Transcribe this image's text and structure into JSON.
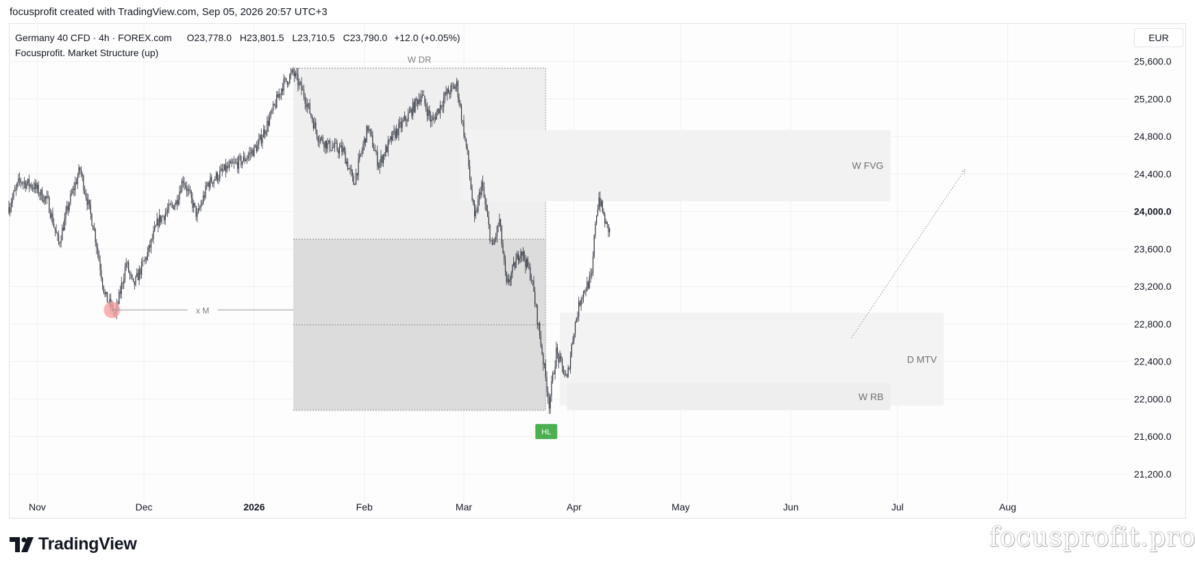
{
  "header": {
    "attribution": "focusprofit created with TradingView.com, Sep 05, 2026 20:57 UTC+3"
  },
  "legend": {
    "symbol": "Germany 40 CFD · 4h · FOREX.com",
    "open": "O23,778.0",
    "high": "H23,801.5",
    "low": "L23,710.5",
    "close": "C23,790.0",
    "change": "+12.0 (+0.05%)",
    "indicator": "Focusprofit. Market Structure (up)"
  },
  "currency": "EUR",
  "footer": {
    "logo_text": "TradingView",
    "watermark": "focusprofit.pro"
  },
  "colors": {
    "candle": "#2a2e39",
    "hl_badge": "#4caf50",
    "low_marker": "#f7a1a1",
    "zone": "#ececec",
    "zone_dark": "#dcdcdc"
  },
  "chart_data": {
    "type": "candlestick",
    "timeframe": "4h",
    "currency": "EUR",
    "y_ticks": [
      21200,
      21600,
      22000,
      22400,
      22800,
      23200,
      23600,
      24000,
      24400,
      24800,
      25200,
      25600
    ],
    "y_tick_labels": [
      "21,200.0",
      "21,600.0",
      "22,000.0",
      "22,400.0",
      "22,800.0",
      "23,200.0",
      "23,600.0",
      "24,000.0",
      "24,400.0",
      "24,800.0",
      "25,200.0",
      "25,600.0"
    ],
    "ylim": [
      20900,
      26000
    ],
    "x_ticks": [
      "Nov",
      "Dec",
      "2026",
      "Feb",
      "Mar",
      "Apr",
      "May",
      "Jun",
      "Jul",
      "Aug"
    ],
    "xlim": [
      "2025-10-24",
      "2026-09-04"
    ],
    "grid": true,
    "close_price": 23790.0,
    "price_path": [
      [
        "2025-10-24",
        24050
      ],
      [
        "2025-10-27",
        24330
      ],
      [
        "2025-10-31",
        24270
      ],
      [
        "2025-11-04",
        24100
      ],
      [
        "2025-11-07",
        23650
      ],
      [
        "2025-11-10",
        24100
      ],
      [
        "2025-11-13",
        24450
      ],
      [
        "2025-11-17",
        23800
      ],
      [
        "2025-11-20",
        23100
      ],
      [
        "2025-11-23",
        22900
      ],
      [
        "2025-11-26",
        23450
      ],
      [
        "2025-11-28",
        23200
      ],
      [
        "2025-12-02",
        23550
      ],
      [
        "2025-12-05",
        23900
      ],
      [
        "2025-12-10",
        24100
      ],
      [
        "2025-12-12",
        24350
      ],
      [
        "2025-12-16",
        23950
      ],
      [
        "2025-12-19",
        24300
      ],
      [
        "2025-12-24",
        24450
      ],
      [
        "2025-12-29",
        24550
      ],
      [
        "2026-01-02",
        24700
      ],
      [
        "2026-01-06",
        25050
      ],
      [
        "2026-01-09",
        25350
      ],
      [
        "2026-01-12",
        25480
      ],
      [
        "2026-01-15",
        25250
      ],
      [
        "2026-01-19",
        24800
      ],
      [
        "2026-01-22",
        24700
      ],
      [
        "2026-01-26",
        24650
      ],
      [
        "2026-01-29",
        24300
      ],
      [
        "2026-02-02",
        24900
      ],
      [
        "2026-02-05",
        24500
      ],
      [
        "2026-02-09",
        24800
      ],
      [
        "2026-02-13",
        25000
      ],
      [
        "2026-02-17",
        25250
      ],
      [
        "2026-02-20",
        24950
      ],
      [
        "2026-02-24",
        25250
      ],
      [
        "2026-02-27",
        25350
      ],
      [
        "2026-03-02",
        24600
      ],
      [
        "2026-03-04",
        23900
      ],
      [
        "2026-03-06",
        24300
      ],
      [
        "2026-03-09",
        23600
      ],
      [
        "2026-03-11",
        23900
      ],
      [
        "2026-03-13",
        23200
      ],
      [
        "2026-03-17",
        23600
      ],
      [
        "2026-03-20",
        23300
      ],
      [
        "2026-03-23",
        22500
      ],
      [
        "2026-03-25",
        21950
      ],
      [
        "2026-03-27",
        22500
      ],
      [
        "2026-03-30",
        22200
      ],
      [
        "2026-04-01",
        22750
      ],
      [
        "2026-04-03",
        23100
      ],
      [
        "2026-04-06",
        23300
      ],
      [
        "2026-04-07",
        23900
      ],
      [
        "2026-04-08",
        24150
      ],
      [
        "2026-04-09",
        24000
      ],
      [
        "2026-04-10",
        23850
      ],
      [
        "2026-04-11",
        23790
      ]
    ],
    "annotations": [
      {
        "label": "W DR",
        "type": "range",
        "x": [
          "2026-01-12",
          "2026-03-24"
        ],
        "y": [
          21880,
          25530
        ]
      },
      {
        "label": "W FVG",
        "type": "zone",
        "x": [
          "2026-02-28",
          "2026-06-29"
        ],
        "y": [
          24110,
          24870
        ]
      },
      {
        "label": "D MTV",
        "type": "zone",
        "x": [
          "2026-03-28",
          "2026-07-14"
        ],
        "y": [
          21930,
          22920
        ]
      },
      {
        "label": "W RB",
        "type": "zone",
        "x": [
          "2026-03-30",
          "2026-06-29"
        ],
        "y": [
          21880,
          22170
        ]
      },
      {
        "label": "x M",
        "type": "level",
        "x": [
          "2025-11-22",
          "2026-01-12"
        ],
        "y": [
          22950,
          22950
        ]
      },
      {
        "label": "HL",
        "type": "badge",
        "x": [
          "2026-03-24",
          "2026-03-24"
        ],
        "y": [
          21880,
          21880
        ]
      }
    ],
    "projection": {
      "from": [
        "2026-06-18",
        22650
      ],
      "to": [
        "2026-07-20",
        24450
      ]
    }
  }
}
